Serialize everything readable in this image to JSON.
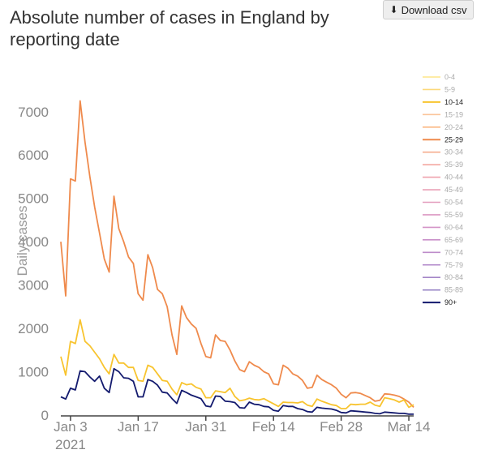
{
  "header": {
    "title": "Absolute number of cases in England by reporting date",
    "download_label": "Download csv",
    "download_icon": "download-icon"
  },
  "chart_data": {
    "type": "line",
    "title": "Absolute number of cases in England by reporting date",
    "xlabel": "",
    "ylabel": "Daily cases",
    "ylim": [
      0,
      7800
    ],
    "yticks": [
      0,
      1000,
      2000,
      3000,
      4000,
      5000,
      6000,
      7000
    ],
    "x_start": "2021-01-01",
    "x_end": "2021-03-15",
    "xticks": [
      {
        "date": "2021-01-03",
        "label": "Jan 3",
        "sublabel": "2021"
      },
      {
        "date": "2021-01-17",
        "label": "Jan 17",
        "sublabel": ""
      },
      {
        "date": "2021-01-31",
        "label": "Jan 31",
        "sublabel": ""
      },
      {
        "date": "2021-02-14",
        "label": "Feb 14",
        "sublabel": ""
      },
      {
        "date": "2021-02-28",
        "label": "Feb 28",
        "sublabel": ""
      },
      {
        "date": "2021-03-14",
        "label": "Mar 14",
        "sublabel": ""
      }
    ],
    "grid": false,
    "legend_position": "right",
    "legend": [
      {
        "name": "0-4",
        "color": "#fde68a",
        "highlight": false
      },
      {
        "name": "5-9",
        "color": "#fcd97a",
        "highlight": false
      },
      {
        "name": "10-14",
        "color": "#f8c42f",
        "highlight": true
      },
      {
        "name": "15-19",
        "color": "#fbc49a",
        "highlight": false
      },
      {
        "name": "20-24",
        "color": "#fbb883",
        "highlight": false
      },
      {
        "name": "25-29",
        "color": "#ef8a4c",
        "highlight": true
      },
      {
        "name": "30-34",
        "color": "#f6ad8e",
        "highlight": false
      },
      {
        "name": "35-39",
        "color": "#f3a7a0",
        "highlight": false
      },
      {
        "name": "40-44",
        "color": "#efa3ae",
        "highlight": false
      },
      {
        "name": "45-49",
        "color": "#eaa0b6",
        "highlight": false
      },
      {
        "name": "50-54",
        "color": "#e39cbd",
        "highlight": false
      },
      {
        "name": "55-59",
        "color": "#dc98c3",
        "highlight": false
      },
      {
        "name": "60-64",
        "color": "#d494c7",
        "highlight": false
      },
      {
        "name": "65-69",
        "color": "#c990c9",
        "highlight": false
      },
      {
        "name": "70-74",
        "color": "#bd8cca",
        "highlight": false
      },
      {
        "name": "75-79",
        "color": "#b189ca",
        "highlight": false
      },
      {
        "name": "80-84",
        "color": "#a486c8",
        "highlight": false
      },
      {
        "name": "85-89",
        "color": "#9784c6",
        "highlight": false
      },
      {
        "name": "90+",
        "color": "#131a6e",
        "highlight": true
      }
    ],
    "series": [
      {
        "name": "25-29",
        "color": "#ef8a4c",
        "points": [
          [
            "2021-01-01",
            4000
          ],
          [
            "2021-01-02",
            2750
          ],
          [
            "2021-01-03",
            5450
          ],
          [
            "2021-01-04",
            5400
          ],
          [
            "2021-01-05",
            7250
          ],
          [
            "2021-01-06",
            6300
          ],
          [
            "2021-01-07",
            5500
          ],
          [
            "2021-01-08",
            4800
          ],
          [
            "2021-01-09",
            4200
          ],
          [
            "2021-01-10",
            3600
          ],
          [
            "2021-01-11",
            3300
          ],
          [
            "2021-01-12",
            5050
          ],
          [
            "2021-01-13",
            4300
          ],
          [
            "2021-01-14",
            4000
          ],
          [
            "2021-01-15",
            3650
          ],
          [
            "2021-01-16",
            3500
          ],
          [
            "2021-01-17",
            2800
          ],
          [
            "2021-01-18",
            2650
          ],
          [
            "2021-01-19",
            3700
          ],
          [
            "2021-01-20",
            3400
          ],
          [
            "2021-01-21",
            2900
          ],
          [
            "2021-01-22",
            2800
          ],
          [
            "2021-01-23",
            2500
          ],
          [
            "2021-01-24",
            1850
          ],
          [
            "2021-01-25",
            1400
          ],
          [
            "2021-01-26",
            2520
          ],
          [
            "2021-01-27",
            2250
          ],
          [
            "2021-01-28",
            2100
          ],
          [
            "2021-01-29",
            2000
          ],
          [
            "2021-01-30",
            1650
          ],
          [
            "2021-01-31",
            1350
          ],
          [
            "2021-02-01",
            1320
          ],
          [
            "2021-02-02",
            1850
          ],
          [
            "2021-02-03",
            1720
          ],
          [
            "2021-02-04",
            1700
          ],
          [
            "2021-02-05",
            1500
          ],
          [
            "2021-02-06",
            1250
          ],
          [
            "2021-02-07",
            1050
          ],
          [
            "2021-02-08",
            1000
          ],
          [
            "2021-02-09",
            1230
          ],
          [
            "2021-02-10",
            1150
          ],
          [
            "2021-02-11",
            1100
          ],
          [
            "2021-02-12",
            1000
          ],
          [
            "2021-02-13",
            950
          ],
          [
            "2021-02-14",
            720
          ],
          [
            "2021-02-15",
            700
          ],
          [
            "2021-02-16",
            1150
          ],
          [
            "2021-02-17",
            1080
          ],
          [
            "2021-02-18",
            950
          ],
          [
            "2021-02-19",
            900
          ],
          [
            "2021-02-20",
            800
          ],
          [
            "2021-02-21",
            620
          ],
          [
            "2021-02-22",
            640
          ],
          [
            "2021-02-23",
            920
          ],
          [
            "2021-02-24",
            820
          ],
          [
            "2021-02-25",
            760
          ],
          [
            "2021-02-26",
            700
          ],
          [
            "2021-02-27",
            620
          ],
          [
            "2021-02-28",
            480
          ],
          [
            "2021-03-01",
            400
          ],
          [
            "2021-03-02",
            510
          ],
          [
            "2021-03-03",
            520
          ],
          [
            "2021-03-04",
            500
          ],
          [
            "2021-03-05",
            450
          ],
          [
            "2021-03-06",
            400
          ],
          [
            "2021-03-07",
            320
          ],
          [
            "2021-03-08",
            340
          ],
          [
            "2021-03-09",
            490
          ],
          [
            "2021-03-10",
            480
          ],
          [
            "2021-03-11",
            460
          ],
          [
            "2021-03-12",
            430
          ],
          [
            "2021-03-13",
            370
          ],
          [
            "2021-03-14",
            300
          ],
          [
            "2021-03-15",
            180
          ]
        ]
      },
      {
        "name": "10-14",
        "color": "#f8c42f",
        "points": [
          [
            "2021-01-01",
            1350
          ],
          [
            "2021-01-02",
            920
          ],
          [
            "2021-01-03",
            1700
          ],
          [
            "2021-01-04",
            1650
          ],
          [
            "2021-01-05",
            2200
          ],
          [
            "2021-01-06",
            1700
          ],
          [
            "2021-01-07",
            1600
          ],
          [
            "2021-01-08",
            1450
          ],
          [
            "2021-01-09",
            1300
          ],
          [
            "2021-01-10",
            1100
          ],
          [
            "2021-01-11",
            950
          ],
          [
            "2021-01-12",
            1400
          ],
          [
            "2021-01-13",
            1200
          ],
          [
            "2021-01-14",
            1200
          ],
          [
            "2021-01-15",
            1100
          ],
          [
            "2021-01-16",
            1100
          ],
          [
            "2021-01-17",
            800
          ],
          [
            "2021-01-18",
            780
          ],
          [
            "2021-01-19",
            1150
          ],
          [
            "2021-01-20",
            1100
          ],
          [
            "2021-01-21",
            950
          ],
          [
            "2021-01-22",
            800
          ],
          [
            "2021-01-23",
            780
          ],
          [
            "2021-01-24",
            600
          ],
          [
            "2021-01-25",
            470
          ],
          [
            "2021-01-26",
            750
          ],
          [
            "2021-01-27",
            700
          ],
          [
            "2021-01-28",
            720
          ],
          [
            "2021-01-29",
            640
          ],
          [
            "2021-01-30",
            600
          ],
          [
            "2021-01-31",
            400
          ],
          [
            "2021-02-01",
            400
          ],
          [
            "2021-02-02",
            560
          ],
          [
            "2021-02-03",
            540
          ],
          [
            "2021-02-04",
            520
          ],
          [
            "2021-02-05",
            620
          ],
          [
            "2021-02-06",
            430
          ],
          [
            "2021-02-07",
            330
          ],
          [
            "2021-02-08",
            350
          ],
          [
            "2021-02-09",
            390
          ],
          [
            "2021-02-10",
            360
          ],
          [
            "2021-02-11",
            350
          ],
          [
            "2021-02-12",
            380
          ],
          [
            "2021-02-13",
            320
          ],
          [
            "2021-02-14",
            260
          ],
          [
            "2021-02-15",
            200
          ],
          [
            "2021-02-16",
            300
          ],
          [
            "2021-02-17",
            290
          ],
          [
            "2021-02-18",
            290
          ],
          [
            "2021-02-19",
            280
          ],
          [
            "2021-02-20",
            310
          ],
          [
            "2021-02-21",
            230
          ],
          [
            "2021-02-22",
            200
          ],
          [
            "2021-02-23",
            370
          ],
          [
            "2021-02-24",
            320
          ],
          [
            "2021-02-25",
            280
          ],
          [
            "2021-02-26",
            240
          ],
          [
            "2021-02-27",
            220
          ],
          [
            "2021-02-28",
            150
          ],
          [
            "2021-03-01",
            150
          ],
          [
            "2021-03-02",
            250
          ],
          [
            "2021-03-03",
            240
          ],
          [
            "2021-03-04",
            250
          ],
          [
            "2021-03-05",
            250
          ],
          [
            "2021-03-06",
            300
          ],
          [
            "2021-03-07",
            230
          ],
          [
            "2021-03-08",
            200
          ],
          [
            "2021-03-09",
            400
          ],
          [
            "2021-03-10",
            380
          ],
          [
            "2021-03-11",
            350
          ],
          [
            "2021-03-12",
            300
          ],
          [
            "2021-03-13",
            350
          ],
          [
            "2021-03-14",
            180
          ],
          [
            "2021-03-15",
            240
          ]
        ]
      },
      {
        "name": "90+",
        "color": "#131a6e",
        "points": [
          [
            "2021-01-01",
            420
          ],
          [
            "2021-01-02",
            370
          ],
          [
            "2021-01-03",
            620
          ],
          [
            "2021-01-04",
            580
          ],
          [
            "2021-01-05",
            1020
          ],
          [
            "2021-01-06",
            1000
          ],
          [
            "2021-01-07",
            880
          ],
          [
            "2021-01-08",
            780
          ],
          [
            "2021-01-09",
            900
          ],
          [
            "2021-01-10",
            620
          ],
          [
            "2021-01-11",
            520
          ],
          [
            "2021-01-12",
            1070
          ],
          [
            "2021-01-13",
            1000
          ],
          [
            "2021-01-14",
            860
          ],
          [
            "2021-01-15",
            850
          ],
          [
            "2021-01-16",
            780
          ],
          [
            "2021-01-17",
            420
          ],
          [
            "2021-01-18",
            420
          ],
          [
            "2021-01-19",
            820
          ],
          [
            "2021-01-20",
            780
          ],
          [
            "2021-01-21",
            690
          ],
          [
            "2021-01-22",
            530
          ],
          [
            "2021-01-23",
            510
          ],
          [
            "2021-01-24",
            380
          ],
          [
            "2021-01-25",
            270
          ],
          [
            "2021-01-26",
            570
          ],
          [
            "2021-01-27",
            520
          ],
          [
            "2021-01-28",
            460
          ],
          [
            "2021-01-29",
            420
          ],
          [
            "2021-01-30",
            380
          ],
          [
            "2021-01-31",
            210
          ],
          [
            "2021-02-01",
            190
          ],
          [
            "2021-02-02",
            440
          ],
          [
            "2021-02-03",
            430
          ],
          [
            "2021-02-04",
            320
          ],
          [
            "2021-02-05",
            310
          ],
          [
            "2021-02-06",
            290
          ],
          [
            "2021-02-07",
            170
          ],
          [
            "2021-02-08",
            160
          ],
          [
            "2021-02-09",
            300
          ],
          [
            "2021-02-10",
            250
          ],
          [
            "2021-02-11",
            240
          ],
          [
            "2021-02-12",
            200
          ],
          [
            "2021-02-13",
            190
          ],
          [
            "2021-02-14",
            110
          ],
          [
            "2021-02-15",
            90
          ],
          [
            "2021-02-16",
            220
          ],
          [
            "2021-02-17",
            200
          ],
          [
            "2021-02-18",
            200
          ],
          [
            "2021-02-19",
            150
          ],
          [
            "2021-02-20",
            130
          ],
          [
            "2021-02-21",
            80
          ],
          [
            "2021-02-22",
            70
          ],
          [
            "2021-02-23",
            180
          ],
          [
            "2021-02-24",
            160
          ],
          [
            "2021-02-25",
            150
          ],
          [
            "2021-02-26",
            140
          ],
          [
            "2021-02-27",
            110
          ],
          [
            "2021-02-28",
            60
          ],
          [
            "2021-03-01",
            50
          ],
          [
            "2021-03-02",
            100
          ],
          [
            "2021-03-03",
            90
          ],
          [
            "2021-03-04",
            80
          ],
          [
            "2021-03-05",
            70
          ],
          [
            "2021-03-06",
            60
          ],
          [
            "2021-03-07",
            40
          ],
          [
            "2021-03-08",
            30
          ],
          [
            "2021-03-09",
            70
          ],
          [
            "2021-03-10",
            60
          ],
          [
            "2021-03-11",
            50
          ],
          [
            "2021-03-12",
            40
          ],
          [
            "2021-03-13",
            40
          ],
          [
            "2021-03-14",
            20
          ],
          [
            "2021-03-15",
            20
          ]
        ]
      }
    ]
  }
}
